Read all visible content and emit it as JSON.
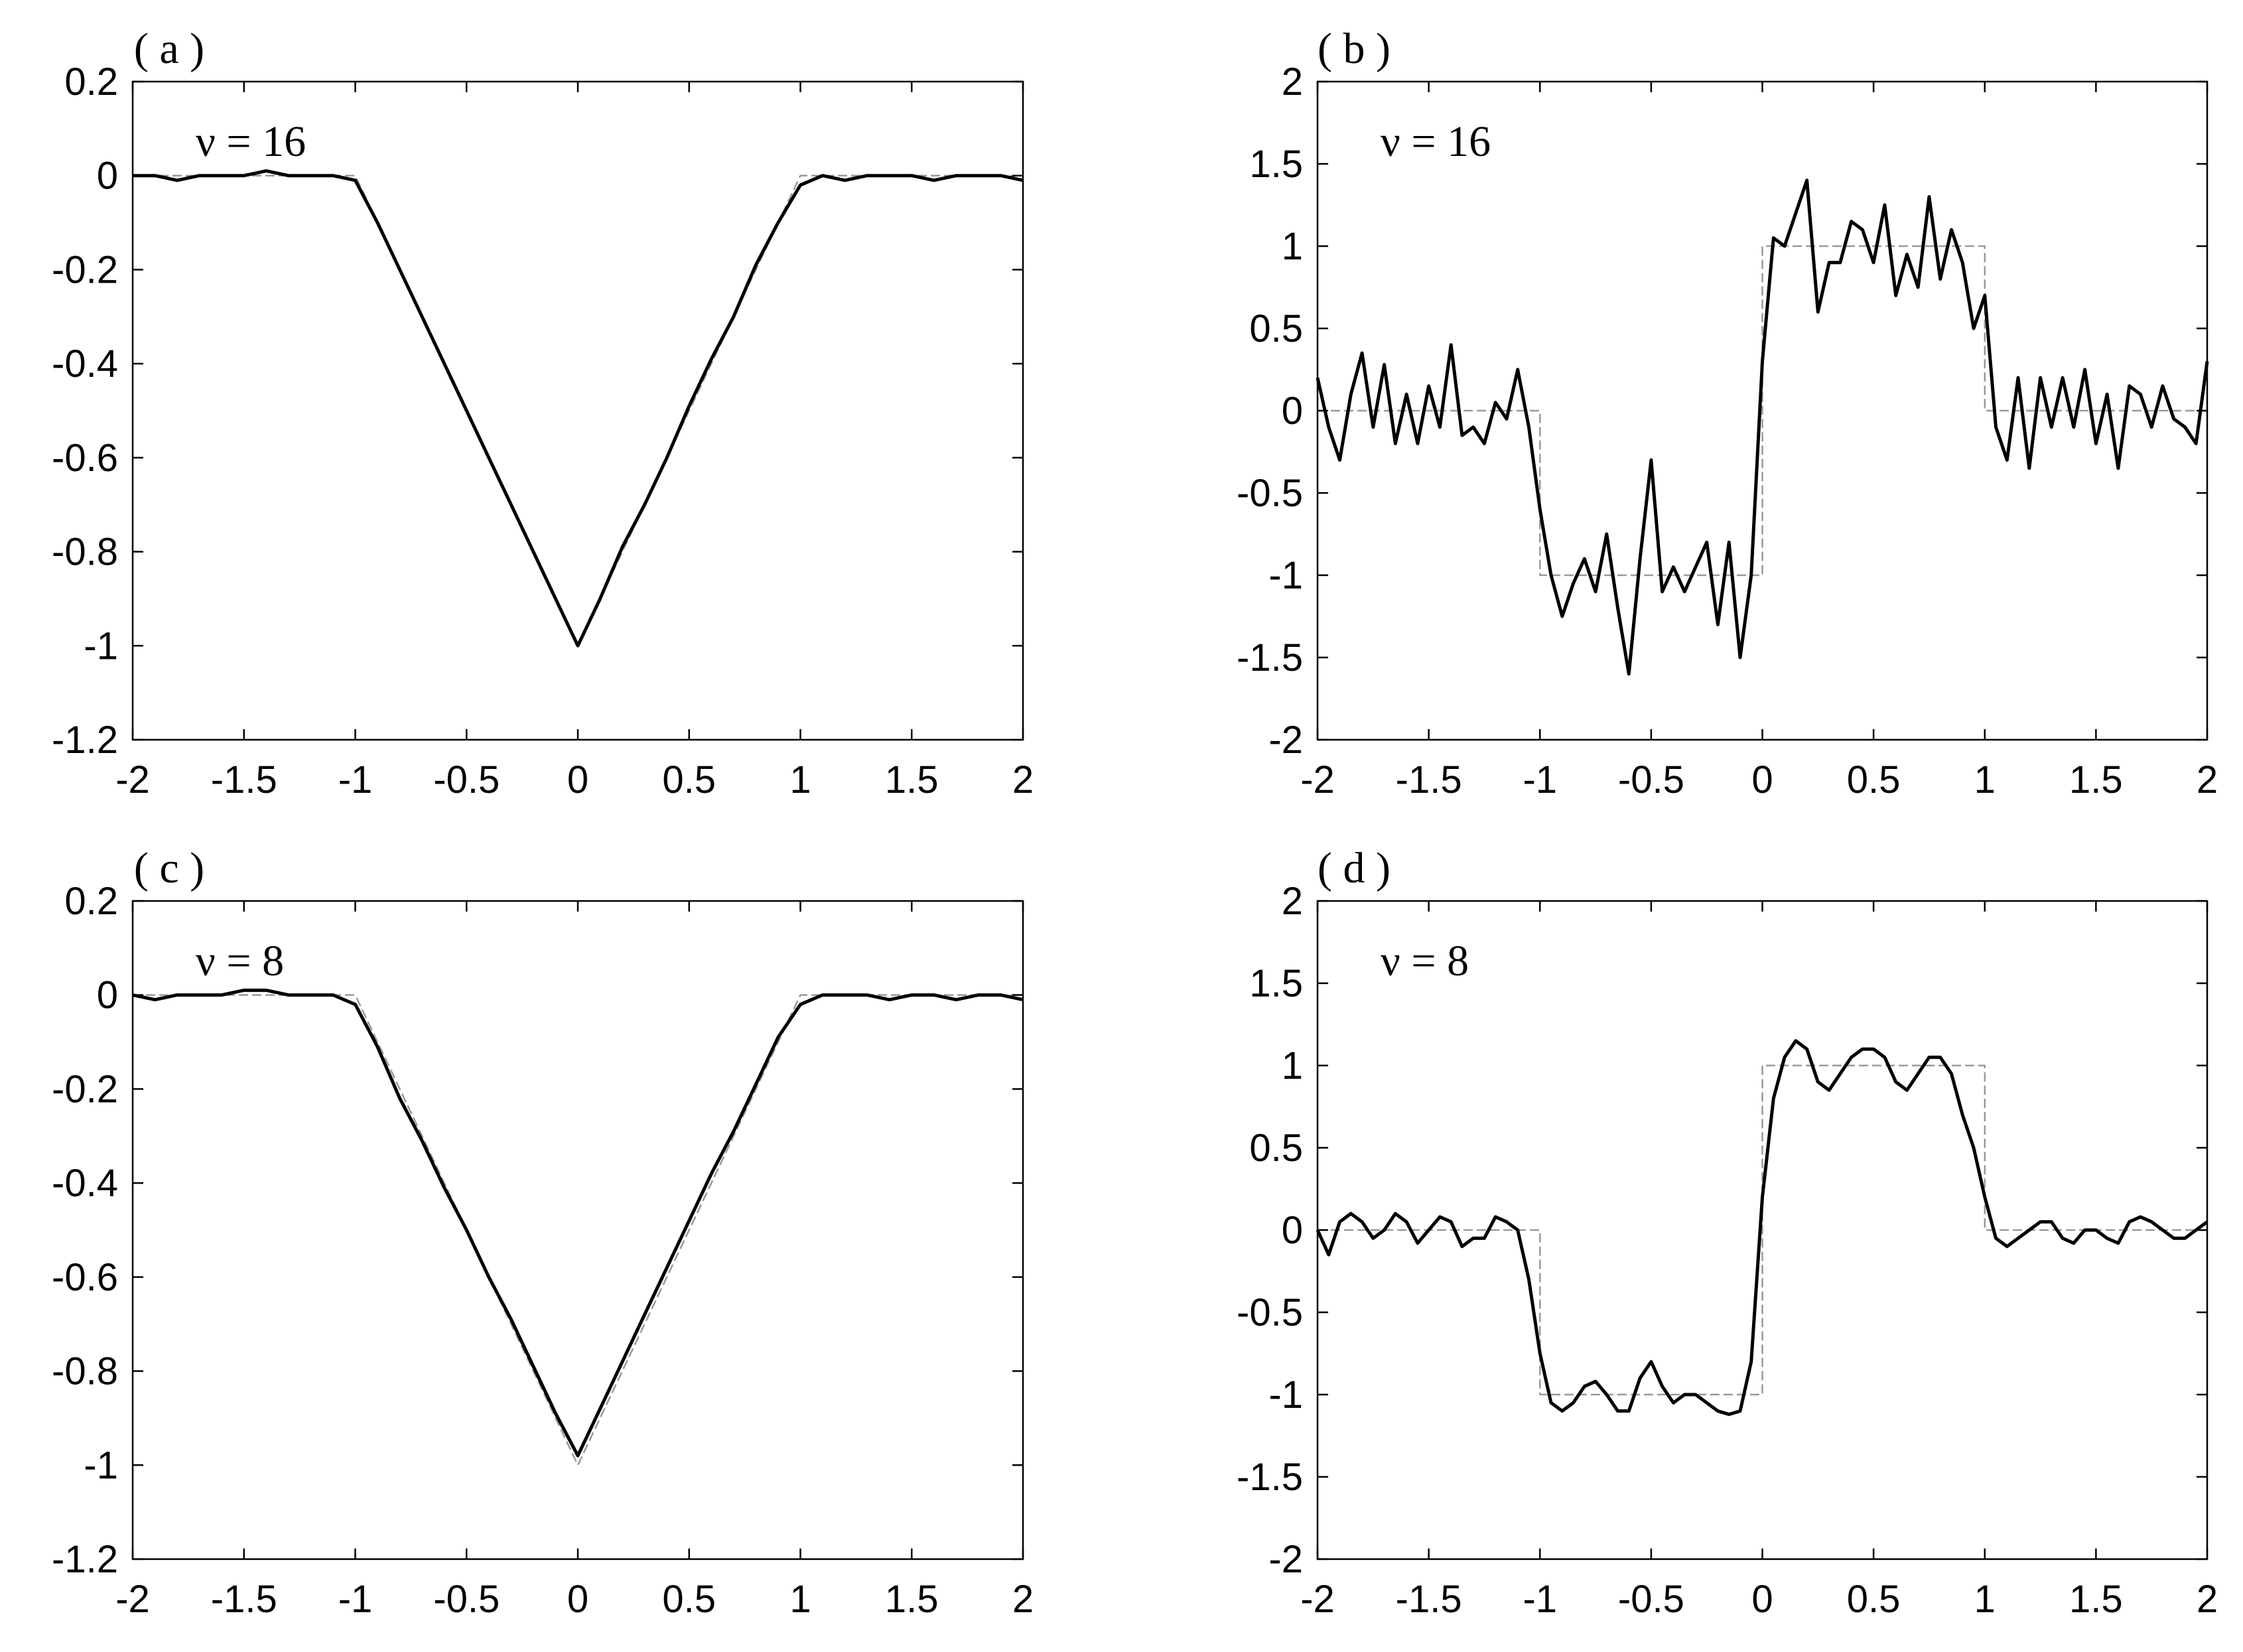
{
  "chart_data": [
    {
      "type": "line",
      "label": "( a )",
      "annotation": "ν = 16",
      "xlim": [
        -2,
        2
      ],
      "xticks": [
        -2,
        -1.5,
        -1,
        -0.5,
        0,
        0.5,
        1,
        1.5,
        2
      ],
      "ylim": [
        -1.2,
        0.2
      ],
      "yticks": [
        -1.2,
        -1,
        -0.8,
        -0.6,
        -0.4,
        -0.2,
        0,
        0.2
      ],
      "series": [
        {
          "color": "#999999",
          "dashed": true,
          "x": [
            -2,
            -1,
            0,
            1,
            2
          ],
          "values": [
            0,
            0,
            -1,
            0,
            0
          ]
        },
        {
          "color": "#000000",
          "dashed": false,
          "x": [
            -2,
            -1.9,
            -1.8,
            -1.7,
            -1.6,
            -1.5,
            -1.4,
            -1.3,
            -1.2,
            -1.1,
            -1,
            -0.9,
            -0.8,
            -0.7,
            -0.6,
            -0.5,
            -0.4,
            -0.3,
            -0.2,
            -0.1,
            0,
            0.1,
            0.2,
            0.3,
            0.4,
            0.5,
            0.6,
            0.7,
            0.8,
            0.9,
            1,
            1.1,
            1.2,
            1.3,
            1.4,
            1.5,
            1.6,
            1.7,
            1.8,
            1.9,
            2
          ],
          "values": [
            0,
            0,
            -0.01,
            0,
            0,
            0,
            0.01,
            0,
            0,
            0,
            -0.01,
            -0.1,
            -0.2,
            -0.3,
            -0.4,
            -0.5,
            -0.6,
            -0.7,
            -0.8,
            -0.9,
            -1,
            -0.9,
            -0.79,
            -0.7,
            -0.6,
            -0.49,
            -0.39,
            -0.3,
            -0.19,
            -0.1,
            -0.02,
            0,
            -0.01,
            0,
            0,
            0,
            -0.01,
            0,
            0,
            0,
            -0.01
          ]
        }
      ]
    },
    {
      "type": "line",
      "label": "( b )",
      "annotation": "ν = 16",
      "xlim": [
        -2,
        2
      ],
      "xticks": [
        -2,
        -1.5,
        -1,
        -0.5,
        0,
        0.5,
        1,
        1.5,
        2
      ],
      "ylim": [
        -2,
        2
      ],
      "yticks": [
        -2,
        -1.5,
        -1,
        -0.5,
        0,
        0.5,
        1,
        1.5,
        2
      ],
      "series": [
        {
          "color": "#999999",
          "dashed": true,
          "x": [
            -2,
            -1,
            -1,
            0,
            0,
            1,
            1,
            2
          ],
          "values": [
            0,
            0,
            -1,
            -1,
            1,
            1,
            0,
            0
          ]
        },
        {
          "color": "#000000",
          "dashed": false,
          "x": [
            -2,
            -1.95,
            -1.9,
            -1.85,
            -1.8,
            -1.75,
            -1.7,
            -1.65,
            -1.6,
            -1.55,
            -1.5,
            -1.45,
            -1.4,
            -1.35,
            -1.3,
            -1.25,
            -1.2,
            -1.15,
            -1.1,
            -1.05,
            -1,
            -0.95,
            -0.9,
            -0.85,
            -0.8,
            -0.75,
            -0.7,
            -0.65,
            -0.6,
            -0.55,
            -0.5,
            -0.45,
            -0.4,
            -0.35,
            -0.3,
            -0.25,
            -0.2,
            -0.15,
            -0.1,
            -0.05,
            0,
            0.05,
            0.1,
            0.15,
            0.2,
            0.25,
            0.3,
            0.35,
            0.4,
            0.45,
            0.5,
            0.55,
            0.6,
            0.65,
            0.7,
            0.75,
            0.8,
            0.85,
            0.9,
            0.95,
            1,
            1.05,
            1.1,
            1.15,
            1.2,
            1.25,
            1.3,
            1.35,
            1.4,
            1.45,
            1.5,
            1.55,
            1.6,
            1.65,
            1.7,
            1.75,
            1.8,
            1.85,
            1.9,
            1.95,
            2
          ],
          "values": [
            0.2,
            -0.1,
            -0.3,
            0.1,
            0.35,
            -0.1,
            0.28,
            -0.2,
            0.1,
            -0.2,
            0.15,
            -0.1,
            0.4,
            -0.15,
            -0.1,
            -0.2,
            0.05,
            -0.05,
            0.25,
            -0.1,
            -0.6,
            -1,
            -1.25,
            -1.05,
            -0.9,
            -1.1,
            -0.75,
            -1.2,
            -1.6,
            -0.9,
            -0.3,
            -1.1,
            -0.95,
            -1.1,
            -0.95,
            -0.8,
            -1.3,
            -0.8,
            -1.5,
            -1,
            0.3,
            1.05,
            1,
            1.2,
            1.4,
            0.6,
            0.9,
            0.9,
            1.15,
            1.1,
            0.9,
            1.25,
            0.7,
            0.95,
            0.75,
            1.3,
            0.8,
            1.1,
            0.9,
            0.5,
            0.7,
            -0.1,
            -0.3,
            0.2,
            -0.35,
            0.2,
            -0.1,
            0.2,
            -0.1,
            0.25,
            -0.2,
            0.1,
            -0.35,
            0.15,
            0.1,
            -0.1,
            0.15,
            -0.05,
            -0.1,
            -0.2,
            0.3
          ]
        }
      ]
    },
    {
      "type": "line",
      "label": "( c )",
      "annotation": "ν = 8",
      "xlim": [
        -2,
        2
      ],
      "xticks": [
        -2,
        -1.5,
        -1,
        -0.5,
        0,
        0.5,
        1,
        1.5,
        2
      ],
      "ylim": [
        -1.2,
        0.2
      ],
      "yticks": [
        -1.2,
        -1,
        -0.8,
        -0.6,
        -0.4,
        -0.2,
        0,
        0.2
      ],
      "series": [
        {
          "color": "#999999",
          "dashed": true,
          "x": [
            -2,
            -1,
            0,
            1,
            2
          ],
          "values": [
            0,
            0,
            -1,
            0,
            0
          ]
        },
        {
          "color": "#000000",
          "dashed": false,
          "x": [
            -2,
            -1.9,
            -1.8,
            -1.7,
            -1.6,
            -1.5,
            -1.4,
            -1.3,
            -1.2,
            -1.1,
            -1,
            -0.9,
            -0.8,
            -0.7,
            -0.6,
            -0.5,
            -0.4,
            -0.3,
            -0.2,
            -0.1,
            0,
            0.1,
            0.2,
            0.3,
            0.4,
            0.5,
            0.6,
            0.7,
            0.8,
            0.9,
            1,
            1.1,
            1.2,
            1.3,
            1.4,
            1.5,
            1.6,
            1.7,
            1.8,
            1.9,
            2
          ],
          "values": [
            0,
            -0.01,
            0,
            0,
            0,
            0.01,
            0.01,
            0,
            0,
            0,
            -0.02,
            -0.11,
            -0.22,
            -0.31,
            -0.41,
            -0.5,
            -0.6,
            -0.69,
            -0.79,
            -0.89,
            -0.98,
            -0.88,
            -0.78,
            -0.68,
            -0.58,
            -0.48,
            -0.38,
            -0.29,
            -0.19,
            -0.09,
            -0.02,
            0,
            0,
            0,
            -0.01,
            0,
            0,
            -0.01,
            0,
            0,
            -0.01
          ]
        }
      ]
    },
    {
      "type": "line",
      "label": "( d )",
      "annotation": "ν = 8",
      "xlim": [
        -2,
        2
      ],
      "xticks": [
        -2,
        -1.5,
        -1,
        -0.5,
        0,
        0.5,
        1,
        1.5,
        2
      ],
      "ylim": [
        -2,
        2
      ],
      "yticks": [
        -2,
        -1.5,
        -1,
        -0.5,
        0,
        0.5,
        1,
        1.5,
        2
      ],
      "series": [
        {
          "color": "#999999",
          "dashed": true,
          "x": [
            -2,
            -1,
            -1,
            0,
            0,
            1,
            1,
            2
          ],
          "values": [
            0,
            0,
            -1,
            -1,
            1,
            1,
            0,
            0
          ]
        },
        {
          "color": "#000000",
          "dashed": false,
          "x": [
            -2,
            -1.95,
            -1.9,
            -1.85,
            -1.8,
            -1.75,
            -1.7,
            -1.65,
            -1.6,
            -1.55,
            -1.5,
            -1.45,
            -1.4,
            -1.35,
            -1.3,
            -1.25,
            -1.2,
            -1.15,
            -1.1,
            -1.05,
            -1,
            -0.95,
            -0.9,
            -0.85,
            -0.8,
            -0.75,
            -0.7,
            -0.65,
            -0.6,
            -0.55,
            -0.5,
            -0.45,
            -0.4,
            -0.35,
            -0.3,
            -0.25,
            -0.2,
            -0.15,
            -0.1,
            -0.05,
            0,
            0.05,
            0.1,
            0.15,
            0.2,
            0.25,
            0.3,
            0.35,
            0.4,
            0.45,
            0.5,
            0.55,
            0.6,
            0.65,
            0.7,
            0.75,
            0.8,
            0.85,
            0.9,
            0.95,
            1,
            1.05,
            1.1,
            1.15,
            1.2,
            1.25,
            1.3,
            1.35,
            1.4,
            1.45,
            1.5,
            1.55,
            1.6,
            1.65,
            1.7,
            1.75,
            1.8,
            1.85,
            1.9,
            1.95,
            2
          ],
          "values": [
            0,
            -0.15,
            0.05,
            0.1,
            0.05,
            -0.05,
            0,
            0.1,
            0.05,
            -0.08,
            0,
            0.08,
            0.05,
            -0.1,
            -0.05,
            -0.05,
            0.08,
            0.05,
            0,
            -0.3,
            -0.75,
            -1.05,
            -1.1,
            -1.05,
            -0.95,
            -0.92,
            -1,
            -1.1,
            -1.1,
            -0.9,
            -0.8,
            -0.95,
            -1.05,
            -1,
            -1,
            -1.05,
            -1.1,
            -1.12,
            -1.1,
            -0.8,
            0.2,
            0.8,
            1.05,
            1.15,
            1.1,
            0.9,
            0.85,
            0.95,
            1.05,
            1.1,
            1.1,
            1.05,
            0.9,
            0.85,
            0.95,
            1.05,
            1.05,
            0.95,
            0.7,
            0.5,
            0.2,
            -0.05,
            -0.1,
            -0.05,
            0,
            0.05,
            0.05,
            -0.05,
            -0.08,
            0,
            0,
            -0.05,
            -0.08,
            0.05,
            0.08,
            0.05,
            0,
            -0.05,
            -0.05,
            0,
            0.05
          ]
        }
      ]
    }
  ]
}
